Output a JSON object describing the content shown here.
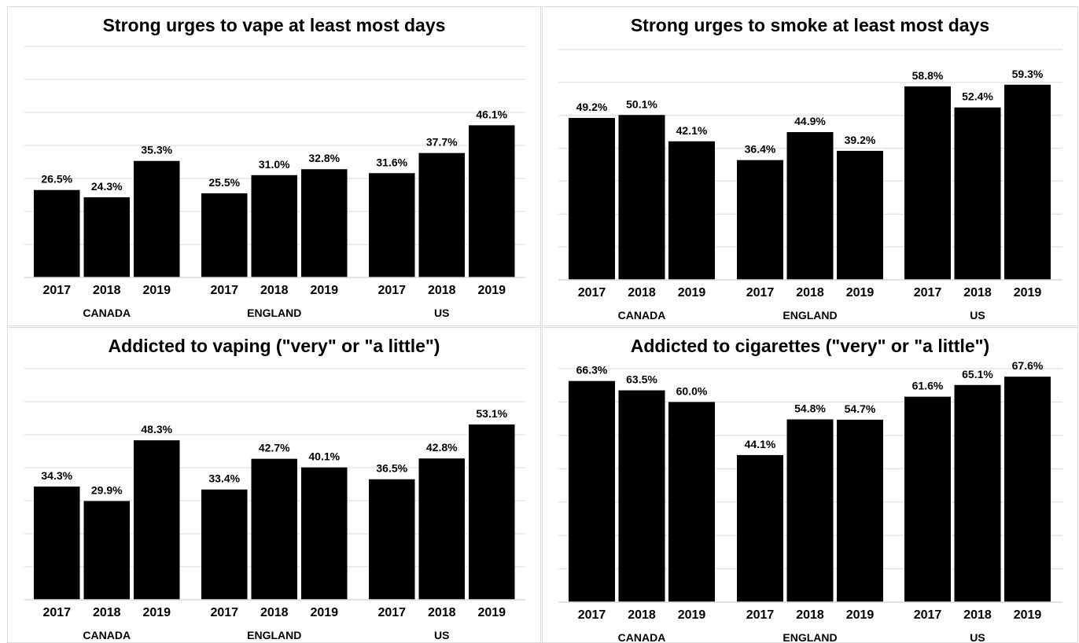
{
  "chart_data": [
    {
      "type": "bar",
      "title": "Strong urges to vape at least most days",
      "groups": [
        "CANADA",
        "ENGLAND",
        "US"
      ],
      "categories": [
        "2017",
        "2018",
        "2019"
      ],
      "values": [
        [
          26.5,
          24.3,
          35.3
        ],
        [
          25.5,
          31.0,
          32.8
        ],
        [
          31.6,
          37.7,
          46.1
        ]
      ],
      "value_labels": [
        [
          "26.5%",
          "24.3%",
          "35.3%"
        ],
        [
          "25.5%",
          "31.0%",
          "32.8%"
        ],
        [
          "31.6%",
          "37.7%",
          "46.1%"
        ]
      ],
      "ylim": [
        0,
        70
      ],
      "grid": true,
      "bar_color": "#000000"
    },
    {
      "type": "bar",
      "title": "Strong urges to smoke at least most days",
      "groups": [
        "CANADA",
        "ENGLAND",
        "US"
      ],
      "categories": [
        "2017",
        "2018",
        "2019"
      ],
      "values": [
        [
          49.2,
          50.1,
          42.1
        ],
        [
          36.4,
          44.9,
          39.2
        ],
        [
          58.8,
          52.4,
          59.3
        ]
      ],
      "value_labels": [
        [
          "49.2%",
          "50.1%",
          "42.1%"
        ],
        [
          "36.4%",
          "44.9%",
          "39.2%"
        ],
        [
          "58.8%",
          "52.4%",
          "59.3%"
        ]
      ],
      "ylim": [
        0,
        70
      ],
      "grid": true,
      "bar_color": "#000000"
    },
    {
      "type": "bar",
      "title": "Addicted to vaping (\"very\" or \"a little\")",
      "groups": [
        "CANADA",
        "ENGLAND",
        "US"
      ],
      "categories": [
        "2017",
        "2018",
        "2019"
      ],
      "values": [
        [
          34.3,
          29.9,
          48.3
        ],
        [
          33.4,
          42.7,
          40.1
        ],
        [
          36.5,
          42.8,
          53.1
        ]
      ],
      "value_labels": [
        [
          "34.3%",
          "29.9%",
          "48.3%"
        ],
        [
          "33.4%",
          "42.7%",
          "40.1%"
        ],
        [
          "36.5%",
          "42.8%",
          "53.1%"
        ]
      ],
      "ylim": [
        0,
        70
      ],
      "grid": true,
      "bar_color": "#000000"
    },
    {
      "type": "bar",
      "title": "Addicted to cigarettes (\"very\" or \"a little\")",
      "groups": [
        "CANADA",
        "ENGLAND",
        "US"
      ],
      "categories": [
        "2017",
        "2018",
        "2019"
      ],
      "values": [
        [
          66.3,
          63.5,
          60.0
        ],
        [
          44.1,
          54.8,
          54.7
        ],
        [
          61.6,
          65.1,
          67.6
        ]
      ],
      "value_labels": [
        [
          "66.3%",
          "63.5%",
          "60.0%"
        ],
        [
          "44.1%",
          "54.8%",
          "54.7%"
        ],
        [
          "61.6%",
          "65.1%",
          "67.6%"
        ]
      ],
      "ylim": [
        0,
        70
      ],
      "grid": true,
      "bar_color": "#000000"
    }
  ]
}
